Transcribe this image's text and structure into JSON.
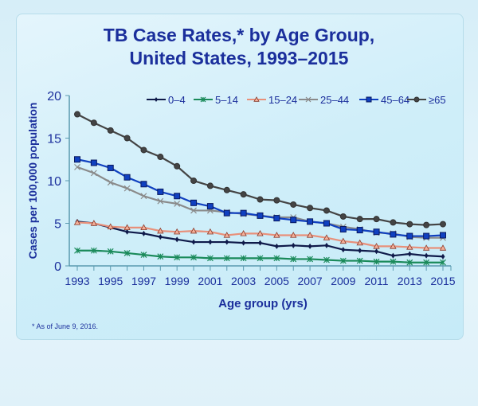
{
  "chart_data": {
    "type": "line",
    "title": "TB Case Rates,* by Age Group, United States, 1993–2015",
    "title_lines": [
      "TB Case Rates,* by Age Group,",
      "United States, 1993–2015"
    ],
    "xlabel": "Age group (yrs)",
    "ylabel": "Cases per 100,000 population",
    "ylim": [
      0,
      20
    ],
    "yticks": [
      "0",
      "5",
      "10",
      "15",
      "20"
    ],
    "xlim": [
      1993,
      2015
    ],
    "xticks": [
      "1993",
      "1995",
      "1997",
      "1999",
      "2001",
      "2003",
      "2005",
      "2007",
      "2009",
      "2011",
      "2013",
      "2015"
    ],
    "grid": false,
    "legend_position": "top-right",
    "x": [
      1993,
      1994,
      1995,
      1996,
      1997,
      1998,
      1999,
      2000,
      2001,
      2002,
      2003,
      2004,
      2005,
      2006,
      2007,
      2008,
      2009,
      2010,
      2011,
      2012,
      2013,
      2014,
      2015
    ],
    "series": [
      {
        "name": "0–4",
        "color": "#0f1a4a",
        "marker": "diamond",
        "values": [
          5.2,
          5.0,
          4.5,
          4.0,
          3.8,
          3.4,
          3.1,
          2.8,
          2.8,
          2.8,
          2.7,
          2.7,
          2.3,
          2.4,
          2.3,
          2.4,
          1.9,
          1.8,
          1.7,
          1.2,
          1.4,
          1.2,
          1.1
        ]
      },
      {
        "name": "5–14",
        "color": "#1a8a5a",
        "marker": "asterisk",
        "values": [
          1.8,
          1.8,
          1.7,
          1.5,
          1.3,
          1.1,
          1.0,
          1.0,
          0.9,
          0.9,
          0.9,
          0.9,
          0.9,
          0.8,
          0.8,
          0.7,
          0.6,
          0.6,
          0.5,
          0.5,
          0.4,
          0.4,
          0.4
        ]
      },
      {
        "name": "15–24",
        "color": "#e8907a",
        "marker": "triangle",
        "values": [
          5.1,
          5.0,
          4.6,
          4.5,
          4.5,
          4.1,
          4.0,
          4.1,
          4.0,
          3.6,
          3.8,
          3.8,
          3.6,
          3.6,
          3.6,
          3.3,
          2.9,
          2.7,
          2.3,
          2.3,
          2.2,
          2.1,
          2.1
        ]
      },
      {
        "name": "25–44",
        "color": "#8a8a8a",
        "marker": "x",
        "values": [
          11.6,
          10.9,
          9.8,
          9.1,
          8.2,
          7.6,
          7.3,
          6.5,
          6.5,
          6.3,
          6.1,
          5.9,
          5.7,
          5.7,
          5.2,
          5.0,
          4.6,
          4.3,
          3.9,
          3.8,
          3.4,
          3.3,
          3.3
        ]
      },
      {
        "name": "45–64",
        "color": "#1040c0",
        "marker": "square",
        "values": [
          12.5,
          12.1,
          11.5,
          10.4,
          9.6,
          8.7,
          8.2,
          7.4,
          7.0,
          6.2,
          6.2,
          5.9,
          5.6,
          5.4,
          5.2,
          5.0,
          4.3,
          4.2,
          4.0,
          3.7,
          3.5,
          3.5,
          3.6
        ]
      },
      {
        "name": "≥65",
        "color": "#444444",
        "marker": "circle",
        "values": [
          17.8,
          16.8,
          15.9,
          15.0,
          13.6,
          12.8,
          11.7,
          10.0,
          9.4,
          8.9,
          8.4,
          7.8,
          7.7,
          7.2,
          6.8,
          6.5,
          5.8,
          5.5,
          5.5,
          5.1,
          4.9,
          4.8,
          4.9
        ]
      }
    ],
    "footnote": "* As of June 9, 2016."
  }
}
